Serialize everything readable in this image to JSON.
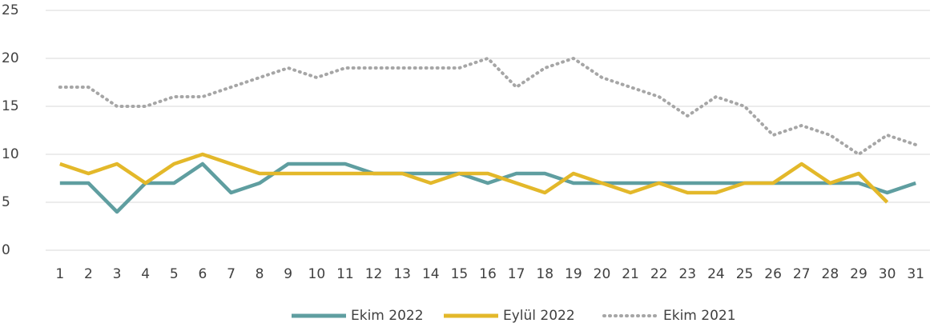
{
  "chart_data": {
    "type": "line",
    "categories": [
      "1",
      "2",
      "3",
      "4",
      "5",
      "6",
      "7",
      "8",
      "9",
      "10",
      "11",
      "12",
      "13",
      "14",
      "15",
      "16",
      "17",
      "18",
      "19",
      "20",
      "21",
      "22",
      "23",
      "24",
      "25",
      "26",
      "27",
      "28",
      "29",
      "30",
      "31"
    ],
    "series": [
      {
        "name": "Ekim 2022",
        "color": "#5f9ea0",
        "style": "solid",
        "values": [
          7,
          7,
          4,
          7,
          7,
          9,
          6,
          7,
          9,
          9,
          9,
          8,
          8,
          8,
          8,
          7,
          8,
          8,
          7,
          7,
          7,
          7,
          7,
          7,
          7,
          7,
          7,
          7,
          7,
          6,
          7
        ]
      },
      {
        "name": "Eylül 2022",
        "color": "#e3b82a",
        "style": "solid",
        "values": [
          9,
          8,
          9,
          7,
          9,
          10,
          9,
          8,
          8,
          8,
          8,
          8,
          8,
          7,
          8,
          8,
          7,
          6,
          8,
          7,
          6,
          7,
          6,
          6,
          7,
          7,
          9,
          7,
          8,
          5,
          null
        ]
      },
      {
        "name": "Ekim 2021",
        "color": "#a6a6a6",
        "style": "dotted",
        "values": [
          17,
          17,
          15,
          15,
          16,
          16,
          17,
          18,
          19,
          18,
          19,
          19,
          19,
          19,
          19,
          20,
          17,
          19,
          20,
          18,
          17,
          16,
          14,
          16,
          15,
          12,
          13,
          12,
          10,
          12,
          11
        ]
      }
    ],
    "ylim": [
      0,
      25
    ],
    "yticks": [
      0,
      5,
      10,
      15,
      20,
      25
    ],
    "grid": true,
    "legend": "bottom"
  }
}
